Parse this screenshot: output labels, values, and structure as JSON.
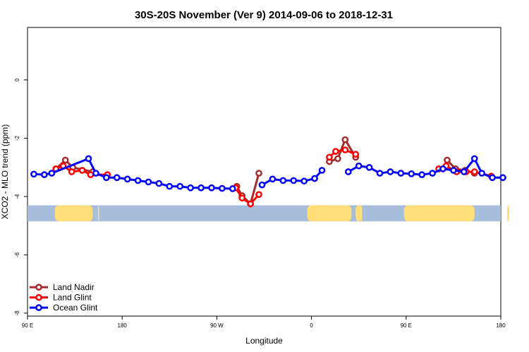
{
  "chart_data": {
    "type": "line",
    "title": "30S-20S November (Ver 9)   2014-09-06 to 2018-12-31",
    "xlabel": "Longitude",
    "ylabel": "XCO2 - MLO trend (ppm)",
    "x_ticks": [
      {
        "value": 90,
        "label": "90 E"
      },
      {
        "value": 180,
        "label": "180"
      },
      {
        "value": 270,
        "label": "90 W"
      },
      {
        "value": 360,
        "label": "0"
      },
      {
        "value": 450,
        "label": "90 E"
      },
      {
        "value": 540,
        "label": "180"
      }
    ],
    "y_ticks": [
      {
        "value": 0,
        "label": "0"
      },
      {
        "value": -2,
        "label": "-2"
      },
      {
        "value": -4,
        "label": "-4"
      },
      {
        "value": -6,
        "label": "-6"
      },
      {
        "value": -8,
        "label": "-8"
      }
    ],
    "xlim": [
      90,
      540
    ],
    "ylim": [
      -8.1,
      1.8
    ],
    "grid": false,
    "legend_position": "bottom-left",
    "map_strip": {
      "y_top": -4.3,
      "y_bottom": -4.85,
      "ocean_color": "#a6bddb",
      "land_color": "#ffdd77",
      "land_spans": [
        [
          116,
          152
        ],
        [
          157,
          158
        ],
        [
          356,
          382
        ],
        [
          374,
          376
        ],
        [
          373,
          376
        ],
        [
          373,
          376
        ],
        [
          372,
          377
        ],
        [
          376,
          398
        ],
        [
          402,
          407
        ],
        [
          407,
          408
        ],
        [
          406,
          408
        ],
        [
          406,
          408
        ],
        [
          406,
          408
        ],
        [
          406,
          408
        ],
        [
          406,
          408
        ],
        [
          448,
          515
        ],
        [
          546,
          548
        ],
        [
          622,
          627
        ]
      ]
    },
    "series": [
      {
        "name": "Land Nadir",
        "color": "#a52a2a",
        "segments": [
          [
            [
              117,
              -3.05
            ],
            [
              126,
              -2.75
            ],
            [
              133,
              -3.0
            ],
            [
              152,
              -3.15
            ]
          ],
          [
            [
              289,
              -3.65
            ],
            [
              294,
              -3.97
            ],
            [
              302,
              -4.25
            ],
            [
              310,
              -3.2
            ]
          ],
          [
            [
              377,
              -2.8
            ],
            [
              385,
              -2.7
            ],
            [
              392,
              -2.05
            ],
            [
              402,
              -2.65
            ]
          ],
          [
            [
              489,
              -2.75
            ],
            [
              497,
              -3.05
            ],
            [
              506,
              -3.1
            ],
            [
              515,
              -3.2
            ]
          ]
        ]
      },
      {
        "name": "Land Glint",
        "color": "#ff0000",
        "segments": [
          [
            [
              117,
              -3.05
            ],
            [
              124,
              -2.95
            ],
            [
              132,
              -3.15
            ],
            [
              142,
              -3.1
            ],
            [
              150,
              -3.25
            ],
            [
              166,
              -3.25
            ]
          ],
          [
            [
              288,
              -3.7
            ],
            [
              294,
              -4.05
            ],
            [
              302,
              -4.25
            ],
            [
              310,
              -3.93
            ]
          ],
          [
            [
              377,
              -2.65
            ],
            [
              383,
              -2.45
            ],
            [
              392,
              -2.4
            ],
            [
              402,
              -2.55
            ]
          ],
          [
            [
              481,
              -3.05
            ],
            [
              488,
              -2.95
            ],
            [
              498,
              -3.15
            ],
            [
              507,
              -3.15
            ],
            [
              515,
              -3.15
            ],
            [
              531,
              -3.3
            ]
          ]
        ]
      },
      {
        "name": "Ocean Glint",
        "color": "#0000ff",
        "segments": [
          [
            [
              96,
              -3.23
            ],
            [
              106,
              -3.25
            ],
            [
              113,
              -3.2
            ],
            [
              148,
              -2.7
            ],
            [
              155,
              -3.2
            ],
            [
              165,
              -3.35
            ],
            [
              175,
              -3.35
            ],
            [
              185,
              -3.4
            ],
            [
              195,
              -3.45
            ],
            [
              205,
              -3.5
            ],
            [
              215,
              -3.55
            ],
            [
              225,
              -3.65
            ],
            [
              235,
              -3.65
            ],
            [
              245,
              -3.7
            ],
            [
              255,
              -3.7
            ],
            [
              265,
              -3.7
            ],
            [
              275,
              -3.72
            ],
            [
              285,
              -3.73
            ]
          ],
          [
            [
              313,
              -3.6
            ],
            [
              323,
              -3.4
            ],
            [
              333,
              -3.45
            ],
            [
              343,
              -3.45
            ],
            [
              353,
              -3.47
            ],
            [
              363,
              -3.38
            ],
            [
              370,
              -3.1
            ]
          ],
          [
            [
              395,
              -3.15
            ],
            [
              405,
              -2.95
            ],
            [
              415,
              -3.0
            ],
            [
              425,
              -3.2
            ],
            [
              435,
              -3.15
            ],
            [
              445,
              -3.2
            ],
            [
              455,
              -3.22
            ],
            [
              465,
              -3.25
            ],
            [
              475,
              -3.2
            ],
            [
              485,
              -3.05
            ],
            [
              495,
              -3.1
            ],
            [
              505,
              -3.15
            ],
            [
              515,
              -2.7
            ],
            [
              522,
              -3.2
            ],
            [
              532,
              -3.35
            ],
            [
              542,
              -3.35
            ]
          ]
        ]
      }
    ]
  }
}
